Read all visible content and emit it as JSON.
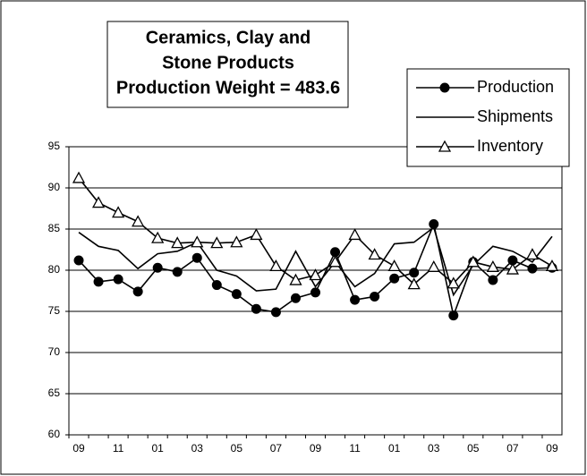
{
  "chart_data": {
    "type": "line",
    "title": [
      "Ceramics, Clay and",
      "Stone Products",
      "Production Weight = 483.6"
    ],
    "categories": [
      "09",
      null,
      "11",
      null,
      "01",
      null,
      "03",
      null,
      "05",
      null,
      "07",
      null,
      "09",
      null,
      "11",
      null,
      "01",
      null,
      "03",
      null,
      "05",
      null,
      "07",
      null,
      "09"
    ],
    "series": [
      {
        "name": "Production",
        "color": "#000000",
        "marker": "circle",
        "values": [
          81.2,
          78.6,
          78.9,
          77.4,
          80.3,
          79.8,
          81.5,
          78.2,
          77.1,
          75.3,
          74.9,
          76.6,
          77.3,
          82.2,
          76.4,
          76.8,
          79.0,
          79.7,
          85.6,
          74.5,
          81.0,
          78.8,
          81.2,
          80.2,
          80.3
        ]
      },
      {
        "name": "Shipments",
        "color": "#000000",
        "marker": "none",
        "values": [
          84.6,
          82.9,
          82.4,
          80.2,
          82.0,
          82.3,
          83.4,
          80.0,
          79.3,
          77.5,
          77.7,
          82.3,
          78.0,
          81.0,
          78.0,
          79.6,
          83.2,
          83.4,
          85.2,
          77.0,
          80.6,
          82.9,
          82.3,
          81.0,
          84.1
        ]
      },
      {
        "name": "Inventory",
        "color": "#000000",
        "marker": "triangle",
        "values": [
          91.2,
          88.2,
          87.0,
          85.9,
          83.9,
          83.3,
          83.4,
          83.3,
          83.4,
          84.3,
          80.5,
          78.8,
          79.4,
          81.0,
          84.3,
          81.9,
          80.5,
          78.3,
          80.4,
          78.4,
          81.0,
          80.4,
          80.1,
          81.9,
          80.5
        ]
      }
    ],
    "ylim": [
      60,
      95
    ],
    "yticks": [
      60,
      65,
      70,
      75,
      80,
      85,
      90,
      95
    ],
    "grid": true,
    "legend": "top-right"
  }
}
